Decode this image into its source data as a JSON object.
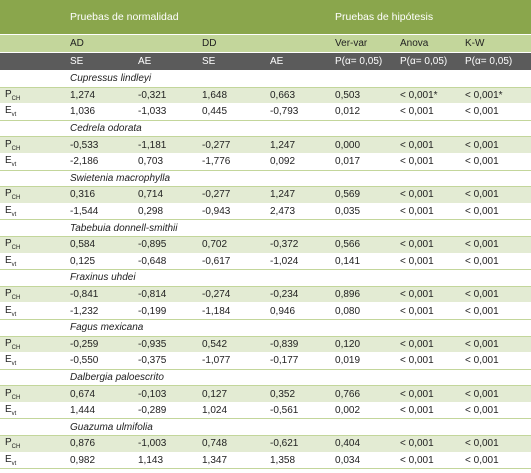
{
  "header": {
    "normality": "Pruebas de normalidad",
    "hypothesis": "Pruebas de hipótesis",
    "tests": [
      "AD",
      "DD",
      "Ver-var",
      "Anova",
      "K-W"
    ],
    "subheads": [
      "SE",
      "AE",
      "SE",
      "AE",
      "P(α= 0,05)",
      "P(α= 0,05)",
      "P(α= 0,05)"
    ]
  },
  "groups": [
    {
      "species": "Cupressus lindleyi",
      "rows": [
        {
          "label": {
            "main": "P",
            "sub": "CH"
          },
          "cells": [
            "1,274",
            "-0,321",
            "1,648",
            "0,663",
            "0,503",
            "< 0,001*",
            "< 0,001*"
          ]
        },
        {
          "label": {
            "main": "E",
            "sub": "vt"
          },
          "cells": [
            "1,036",
            "-1,033",
            "0,445",
            "-0,793",
            "0,012",
            "< 0,001",
            "< 0,001"
          ]
        }
      ]
    },
    {
      "species": "Cedrela odorata",
      "rows": [
        {
          "label": {
            "main": "P",
            "sub": "CH"
          },
          "cells": [
            "-0,533",
            "-1,181",
            "-0,277",
            "1,247",
            "0,000",
            "< 0,001",
            "< 0,001"
          ]
        },
        {
          "label": {
            "main": "E",
            "sub": "vt"
          },
          "cells": [
            "-2,186",
            "0,703",
            "-1,776",
            "0,092",
            "0,017",
            "< 0,001",
            "< 0,001"
          ]
        }
      ]
    },
    {
      "species": "Swietenia macrophylla",
      "rows": [
        {
          "label": {
            "main": "P",
            "sub": "CH"
          },
          "cells": [
            "0,316",
            "0,714",
            "-0,277",
            "1,247",
            "0,569",
            "< 0,001",
            "< 0,001"
          ]
        },
        {
          "label": {
            "main": "E",
            "sub": "vt"
          },
          "cells": [
            "-1,544",
            "0,298",
            "-0,943",
            "2,473",
            "0,035",
            "< 0,001",
            "< 0,001"
          ]
        }
      ]
    },
    {
      "species": "Tabebuia donnell-smithii",
      "rows": [
        {
          "label": {
            "main": "P",
            "sub": "CH"
          },
          "cells": [
            "0,584",
            "-0,895",
            "0,702",
            "-0,372",
            "0,566",
            "< 0,001",
            "< 0,001"
          ]
        },
        {
          "label": {
            "main": "E",
            "sub": "vt"
          },
          "cells": [
            "0,125",
            "-0,648",
            "-0,617",
            "-1,024",
            "0,141",
            "< 0,001",
            "< 0,001"
          ]
        }
      ]
    },
    {
      "species": "Fraxinus uhdei",
      "rows": [
        {
          "label": {
            "main": "P",
            "sub": "CH"
          },
          "cells": [
            "-0,841",
            "-0,814",
            "-0,274",
            "-0,234",
            "0,896",
            "< 0,001",
            "< 0,001"
          ]
        },
        {
          "label": {
            "main": "E",
            "sub": "vt"
          },
          "cells": [
            "-1,232",
            "-0,199",
            "-1,184",
            "0,946",
            "0,080",
            "< 0,001",
            "< 0,001"
          ]
        }
      ]
    },
    {
      "species": "Fagus mexicana",
      "rows": [
        {
          "label": {
            "main": "P",
            "sub": "CH"
          },
          "cells": [
            "-0,259",
            "-0,935",
            "0,542",
            "-0,839",
            "0,120",
            "< 0,001",
            "< 0,001"
          ]
        },
        {
          "label": {
            "main": "E",
            "sub": "vt"
          },
          "cells": [
            "-0,550",
            "-0,375",
            "-1,077",
            "-0,177",
            "0,019",
            "< 0,001",
            "< 0,001"
          ]
        }
      ]
    },
    {
      "species": "Dalbergia paloescrito",
      "rows": [
        {
          "label": {
            "main": "P",
            "sub": "CH"
          },
          "cells": [
            "0,674",
            "-0,103",
            "0,127",
            "0,352",
            "0,766",
            "< 0,001",
            "< 0,001"
          ]
        },
        {
          "label": {
            "main": "E",
            "sub": "vt"
          },
          "cells": [
            "1,444",
            "-0,289",
            "1,024",
            "-0,561",
            "0,002",
            "< 0,001",
            "< 0,001"
          ]
        }
      ]
    },
    {
      "species": "Guazuma ulmifolia",
      "rows": [
        {
          "label": {
            "main": "P",
            "sub": "CH"
          },
          "cells": [
            "0,876",
            "-1,003",
            "0,748",
            "-0,621",
            "0,404",
            "< 0,001",
            "< 0,001"
          ]
        },
        {
          "label": {
            "main": "E",
            "sub": "vt"
          },
          "cells": [
            "0,982",
            "1,143",
            "1,347",
            "1,358",
            "0,034",
            "< 0,001",
            "< 0,001"
          ]
        }
      ]
    }
  ]
}
